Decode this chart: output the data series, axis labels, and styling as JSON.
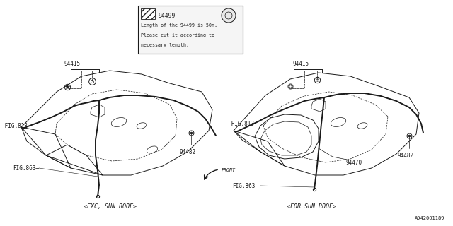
{
  "bg_color": "#ffffff",
  "line_color": "#1a1a1a",
  "fig_width": 6.4,
  "fig_height": 3.2,
  "diagram_id": "A942001189",
  "left_label": "<EXC, SUN ROOF>",
  "right_label": "<FOR SUN ROOF>",
  "note_text_1": "94499",
  "note_text_2": "Length of the 94499 is 50m.",
  "note_text_3": "Please cut it according to",
  "note_text_4": "necessary length.",
  "font_size_main": 5.5,
  "font_size_label": 6.0,
  "font_size_note": 4.8,
  "font_size_id": 5.0
}
